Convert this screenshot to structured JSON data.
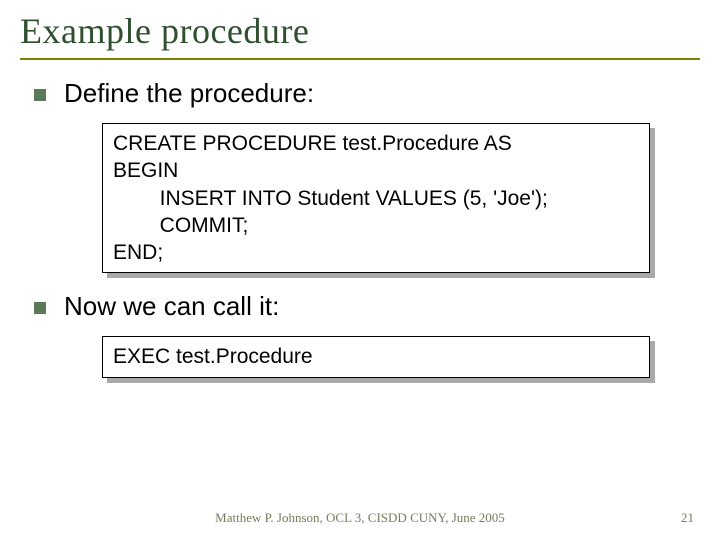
{
  "title": "Example procedure",
  "bullets": [
    {
      "text": "Define the procedure:"
    },
    {
      "text": "Now we can call it:"
    }
  ],
  "code1": "CREATE PROCEDURE test.Procedure AS\nBEGIN\n        INSERT INTO Student VALUES (5, 'Joe');\n        COMMIT;\nEND;",
  "code2": "EXEC test.Procedure",
  "footer": "Matthew P. Johnson, OCL 3, CISDD CUNY, June 2005",
  "page_number": "21",
  "colors": {
    "title_color": "#2f4f2f",
    "rule_color": "#808000",
    "bullet_color": "#5a7a5a",
    "shadow_color": "#a9a9a9",
    "footer_color": "#7a7a5c"
  }
}
